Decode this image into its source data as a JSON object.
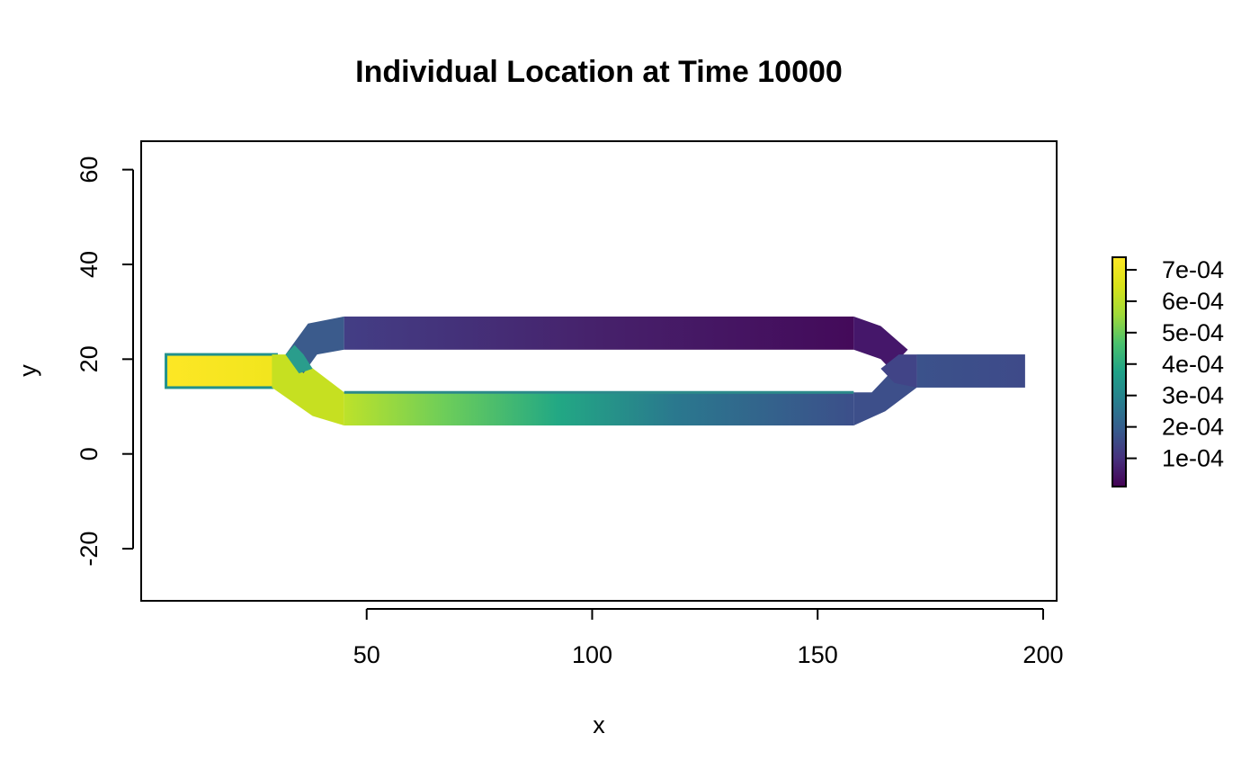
{
  "chart_data": {
    "type": "heatmap",
    "title": "Individual Location at Time 10000",
    "xlabel": "x",
    "ylabel": "y",
    "xlim": [
      0,
      203
    ],
    "ylim": [
      -31,
      66
    ],
    "x_ticks": [
      50,
      100,
      150,
      200
    ],
    "x_tick_labels": [
      "50",
      "100",
      "150",
      "200"
    ],
    "y_ticks": [
      -20,
      0,
      20,
      40,
      60
    ],
    "y_tick_labels": [
      "-20",
      "0",
      "20",
      "40",
      "60"
    ],
    "grid": false,
    "legend": {
      "type": "colorbar",
      "placement": "right",
      "range": [
        1e-05,
        0.00074
      ],
      "ticks": [
        0.0001,
        0.0002,
        0.0003,
        0.0004,
        0.0005,
        0.0006,
        0.0007
      ],
      "tick_labels": [
        "1e-04",
        "2e-04",
        "3e-04",
        "4e-04",
        "5e-04",
        "6e-04",
        "7e-04"
      ]
    },
    "colormap": "viridis",
    "regions": [
      {
        "name": "inlet",
        "x": [
          5.5,
          30
        ],
        "y": [
          14,
          21
        ],
        "value_start": 0.00074,
        "value_end": 0.00072
      },
      {
        "name": "junction-left",
        "x": [
          30,
          45
        ],
        "y": [
          7,
          28
        ],
        "value": 0.0005
      },
      {
        "name": "lower-channel",
        "x": [
          45,
          158
        ],
        "y": [
          6,
          13
        ],
        "value_start": 0.00065,
        "value_end": 0.00021
      },
      {
        "name": "upper-channel",
        "x": [
          45,
          158
        ],
        "y": [
          22,
          29
        ],
        "value_start": 0.00011,
        "value_end": 3e-05
      },
      {
        "name": "junction-right",
        "x": [
          158,
          172
        ],
        "y": [
          7,
          28
        ],
        "value": 0.00018
      },
      {
        "name": "outlet",
        "x": [
          172,
          196
        ],
        "y": [
          14,
          21
        ],
        "value": 0.00019
      }
    ]
  }
}
